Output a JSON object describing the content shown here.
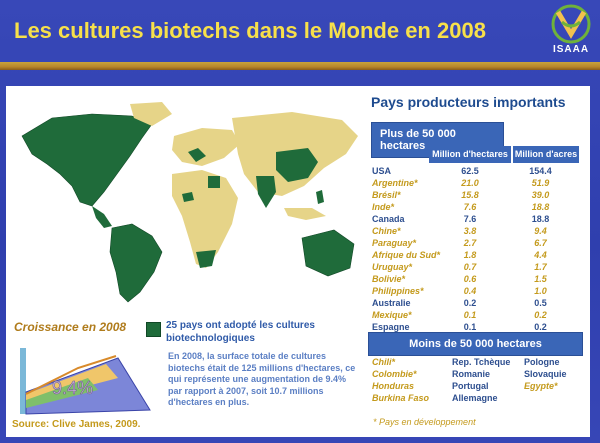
{
  "header": {
    "title": "Les cultures biotechs dans le Monde en 2008"
  },
  "logo": {
    "text": "ISAAA"
  },
  "colors": {
    "accent_gold": "#c49a1c",
    "biotech_green": "#1f6b3a",
    "other_land": "#e6d488",
    "header_text": "#f7e04a",
    "table_blue": "#3a66b7"
  },
  "countries": {
    "title": "Pays producteurs importants",
    "plus_tab": "Plus de 50 000 hectares",
    "col_hectares": "Million d'hectares",
    "col_acres": "Million d'acres",
    "rows": [
      {
        "name": "USA",
        "ha": "62.5",
        "acres": "154.4",
        "dev": false
      },
      {
        "name": "Argentine*",
        "ha": "21.0",
        "acres": "51.9",
        "dev": true
      },
      {
        "name": "Brésil*",
        "ha": "15.8",
        "acres": "39.0",
        "dev": true
      },
      {
        "name": "Inde*",
        "ha": "7.6",
        "acres": "18.8",
        "dev": true
      },
      {
        "name": "Canada",
        "ha": "7.6",
        "acres": "18.8",
        "dev": false
      },
      {
        "name": "Chine*",
        "ha": "3.8",
        "acres": "9.4",
        "dev": true
      },
      {
        "name": "Paraguay*",
        "ha": "2.7",
        "acres": "6.7",
        "dev": true
      },
      {
        "name": "Afrique du Sud*",
        "ha": "1.8",
        "acres": "4.4",
        "dev": true
      },
      {
        "name": "Uruguay*",
        "ha": "0.7",
        "acres": "1.7",
        "dev": true
      },
      {
        "name": "Bolivie*",
        "ha": "0.6",
        "acres": "1.5",
        "dev": true
      },
      {
        "name": "Philippines*",
        "ha": "0.4",
        "acres": "1.0",
        "dev": true
      },
      {
        "name": "Australie",
        "ha": "0.2",
        "acres": "0.5",
        "dev": false
      },
      {
        "name": "Mexique*",
        "ha": "0.1",
        "acres": "0.2",
        "dev": true
      },
      {
        "name": "Espagne",
        "ha": "0.1",
        "acres": "0.2",
        "dev": false
      }
    ],
    "moins_tab": "Moins de 50 000 hectares",
    "moins_col1": [
      {
        "name": "Chili*",
        "dev": true
      },
      {
        "name": "Colombie*",
        "dev": true
      },
      {
        "name": "Honduras",
        "dev": true
      },
      {
        "name": "Burkina Faso",
        "dev": true
      }
    ],
    "moins_col2": [
      {
        "name": "Rep. Tchèque",
        "dev": false
      },
      {
        "name": "Romanie",
        "dev": false
      },
      {
        "name": "Portugal",
        "dev": false
      },
      {
        "name": "Allemagne",
        "dev": false
      }
    ],
    "moins_col3": [
      {
        "name": "Pologne",
        "dev": false
      },
      {
        "name": "Slovaquie",
        "dev": false
      },
      {
        "name": "Egypte*",
        "dev": true
      }
    ],
    "footnote": "* Pays en développement"
  },
  "growth": {
    "title": "Croissance en 2008",
    "value_label": "9.4%"
  },
  "legend": {
    "text": "25 pays ont adopté les cultures biotechnologiques"
  },
  "summary": {
    "text": "En 2008, la surface totale de cultures biotechs était de 125 millions d'hectares, ce qui représente une augmentation de 9.4% par rapport à 2007, soit 10.7 millions d'hectares  en plus."
  },
  "source": {
    "text": "Source: Clive James, 2009."
  }
}
